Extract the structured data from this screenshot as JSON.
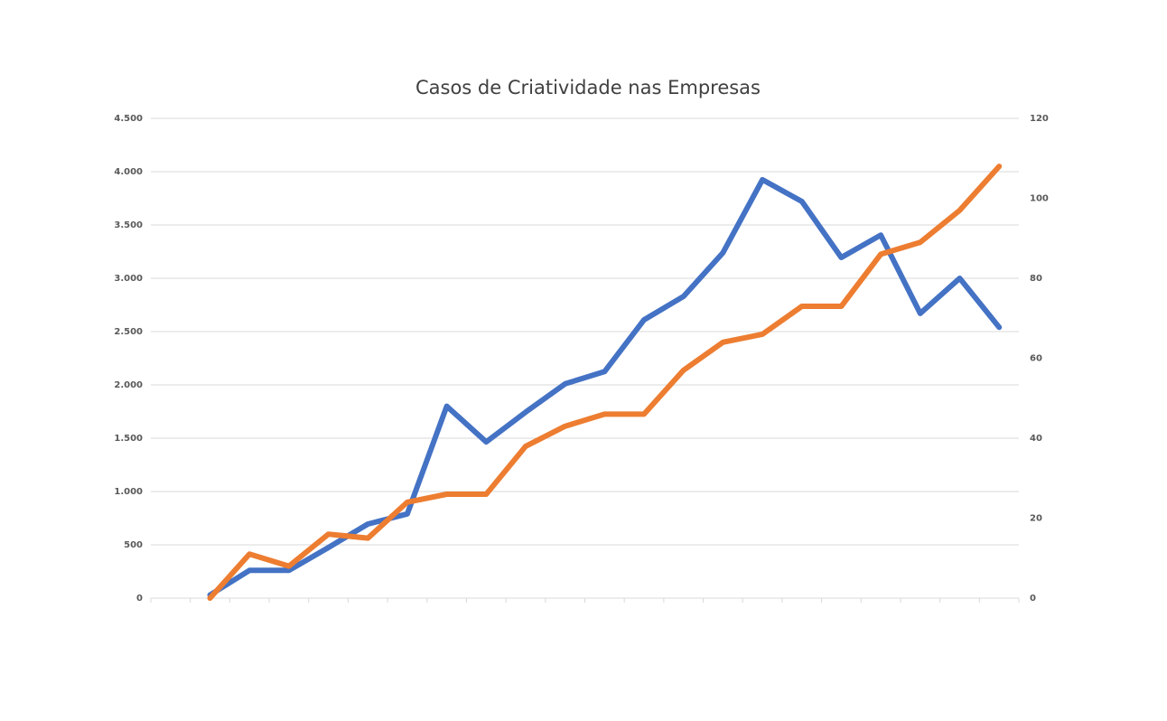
{
  "chart_data": {
    "type": "line",
    "title": "Casos de Criatividade nas Empresas",
    "categories": [
      null,
      null,
      null,
      null,
      null,
      null,
      null,
      null,
      null,
      null,
      null,
      null,
      null,
      null,
      null,
      null,
      null,
      null,
      null,
      null,
      null,
      null
    ],
    "series": [
      {
        "color": "#4472c4",
        "values": [
          null,
          30,
          260,
          260,
          475,
          695,
          790,
          1800,
          1465,
          1745,
          2010,
          2125,
          2610,
          2830,
          3240,
          3925,
          3720,
          3195,
          3405,
          2670,
          3000,
          2540
        ]
      },
      {
        "color": "#ed7d31",
        "axis": "y2",
        "values": [
          null,
          0,
          11,
          8,
          16,
          15,
          24,
          26,
          26,
          38,
          43,
          46,
          46,
          57,
          64,
          66,
          73,
          73,
          86,
          89,
          97,
          108
        ]
      }
    ],
    "ylim": [
      0,
      4500
    ],
    "yticks": [
      0,
      500,
      {
        "value": 1000,
        "label": "1.000"
      },
      {
        "value": 1500,
        "label": "1.500"
      },
      {
        "value": 2000,
        "label": "2.000"
      },
      {
        "value": 2500,
        "label": "2.500"
      },
      {
        "value": 3000,
        "label": "3.000"
      },
      {
        "value": 3500,
        "label": "3.500"
      },
      {
        "value": 4000,
        "label": "4.000"
      },
      {
        "value": 4500,
        "label": "4.500"
      }
    ],
    "y2lim": [
      0,
      120
    ],
    "y2ticks": [
      0,
      20,
      40,
      60,
      80,
      100,
      120
    ],
    "grid": true
  }
}
